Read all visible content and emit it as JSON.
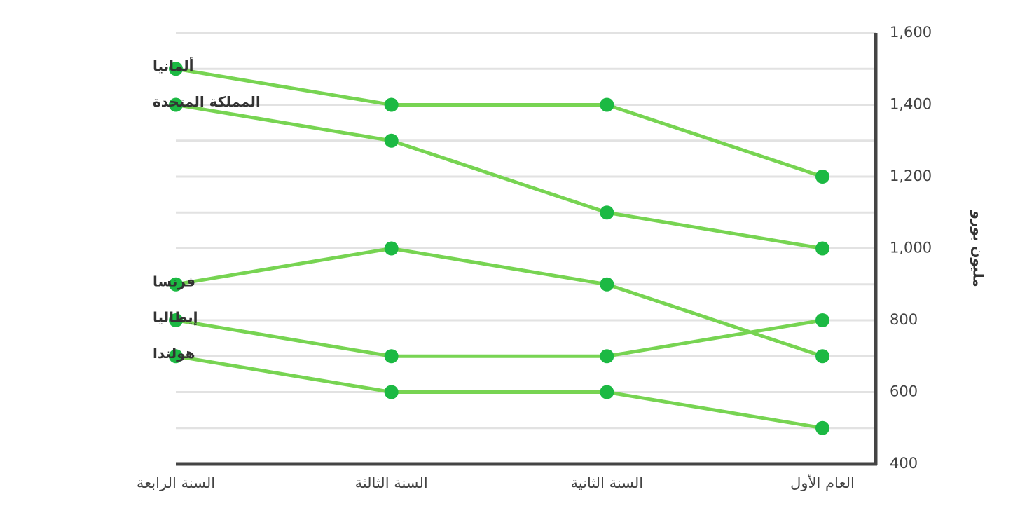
{
  "chart_data": {
    "type": "line",
    "y_label": "مليون يورو",
    "categories": [
      "العام الأول",
      "السنة الثانية",
      "السنة الثالثة",
      "السنة الرابعة"
    ],
    "x_direction": "rtl",
    "y_axis_side": "right",
    "series": [
      {
        "name": "ألمانيا",
        "color": "#77d452",
        "marker_color": "#1cb943",
        "values": [
          1200,
          1400,
          1400,
          1500
        ]
      },
      {
        "name": "المملكة المتحدة",
        "color": "#77d452",
        "marker_color": "#1cb943",
        "values": [
          1000,
          1100,
          1300,
          1400
        ]
      },
      {
        "name": "فرنسا",
        "color": "#77d452",
        "marker_color": "#1cb943",
        "values": [
          700,
          900,
          1000,
          900
        ]
      },
      {
        "name": "إيطاليا",
        "color": "#77d452",
        "marker_color": "#1cb943",
        "values": [
          800,
          700,
          700,
          800
        ]
      },
      {
        "name": "هولندا",
        "color": "#77d452",
        "marker_color": "#1cb943",
        "values": [
          500,
          600,
          600,
          700
        ]
      }
    ],
    "ylim": [
      400,
      1600
    ],
    "yticks": [
      400,
      600,
      800,
      {
        "value": 1000,
        "label": "1,000"
      },
      {
        "value": 1200,
        "label": "1,200"
      },
      {
        "value": 1400,
        "label": "1,400"
      },
      {
        "value": 1600,
        "label": "1,600"
      }
    ],
    "minor_yticks": [
      500,
      700,
      900,
      1100,
      1300,
      1500
    ],
    "grid": true
  }
}
